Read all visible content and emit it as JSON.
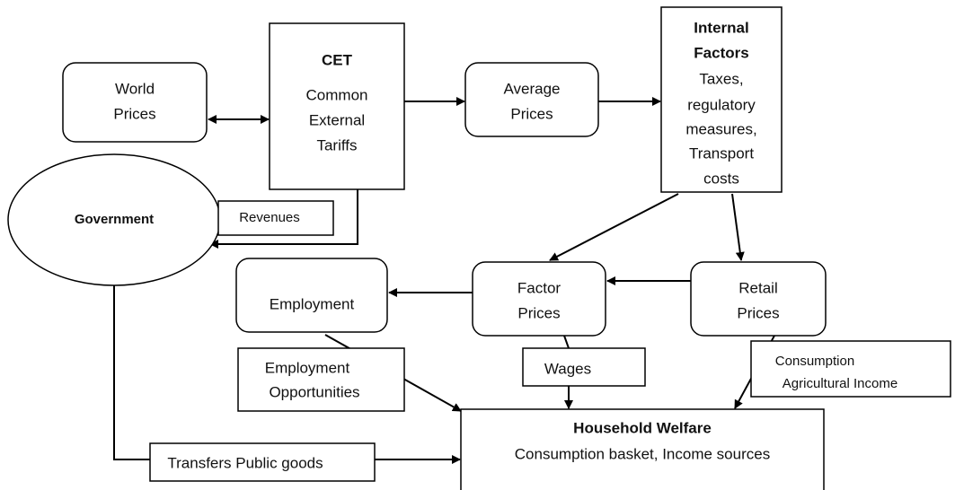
{
  "nodes": [
    {
      "lines": [
        "World",
        "Prices"
      ]
    },
    {
      "title": "CET",
      "lines": [
        "Common",
        "External",
        "Tariffs"
      ]
    },
    {
      "lines": [
        "Average",
        "Prices"
      ]
    },
    {
      "title": [
        "Internal",
        "Factors"
      ],
      "lines": [
        "Taxes,",
        "regulatory",
        "measures,",
        "Transport",
        "costs"
      ]
    },
    {
      "title": "Government"
    },
    {
      "lines": [
        "Employment"
      ]
    },
    {
      "lines": [
        "Factor",
        "Prices"
      ]
    },
    {
      "lines": [
        "Retail",
        "Prices"
      ]
    },
    {
      "title": "Household Welfare",
      "lines": [
        "Consumption basket, Income sources"
      ]
    }
  ],
  "labels": [
    {
      "lines": [
        "Revenues"
      ]
    },
    {
      "lines": [
        "Employment",
        "Opportunities"
      ]
    },
    {
      "lines": [
        "Wages"
      ]
    },
    {
      "lines": [
        "Consumption",
        "Agricultural Income"
      ]
    },
    {
      "lines": [
        "Transfers Public goods"
      ]
    }
  ]
}
